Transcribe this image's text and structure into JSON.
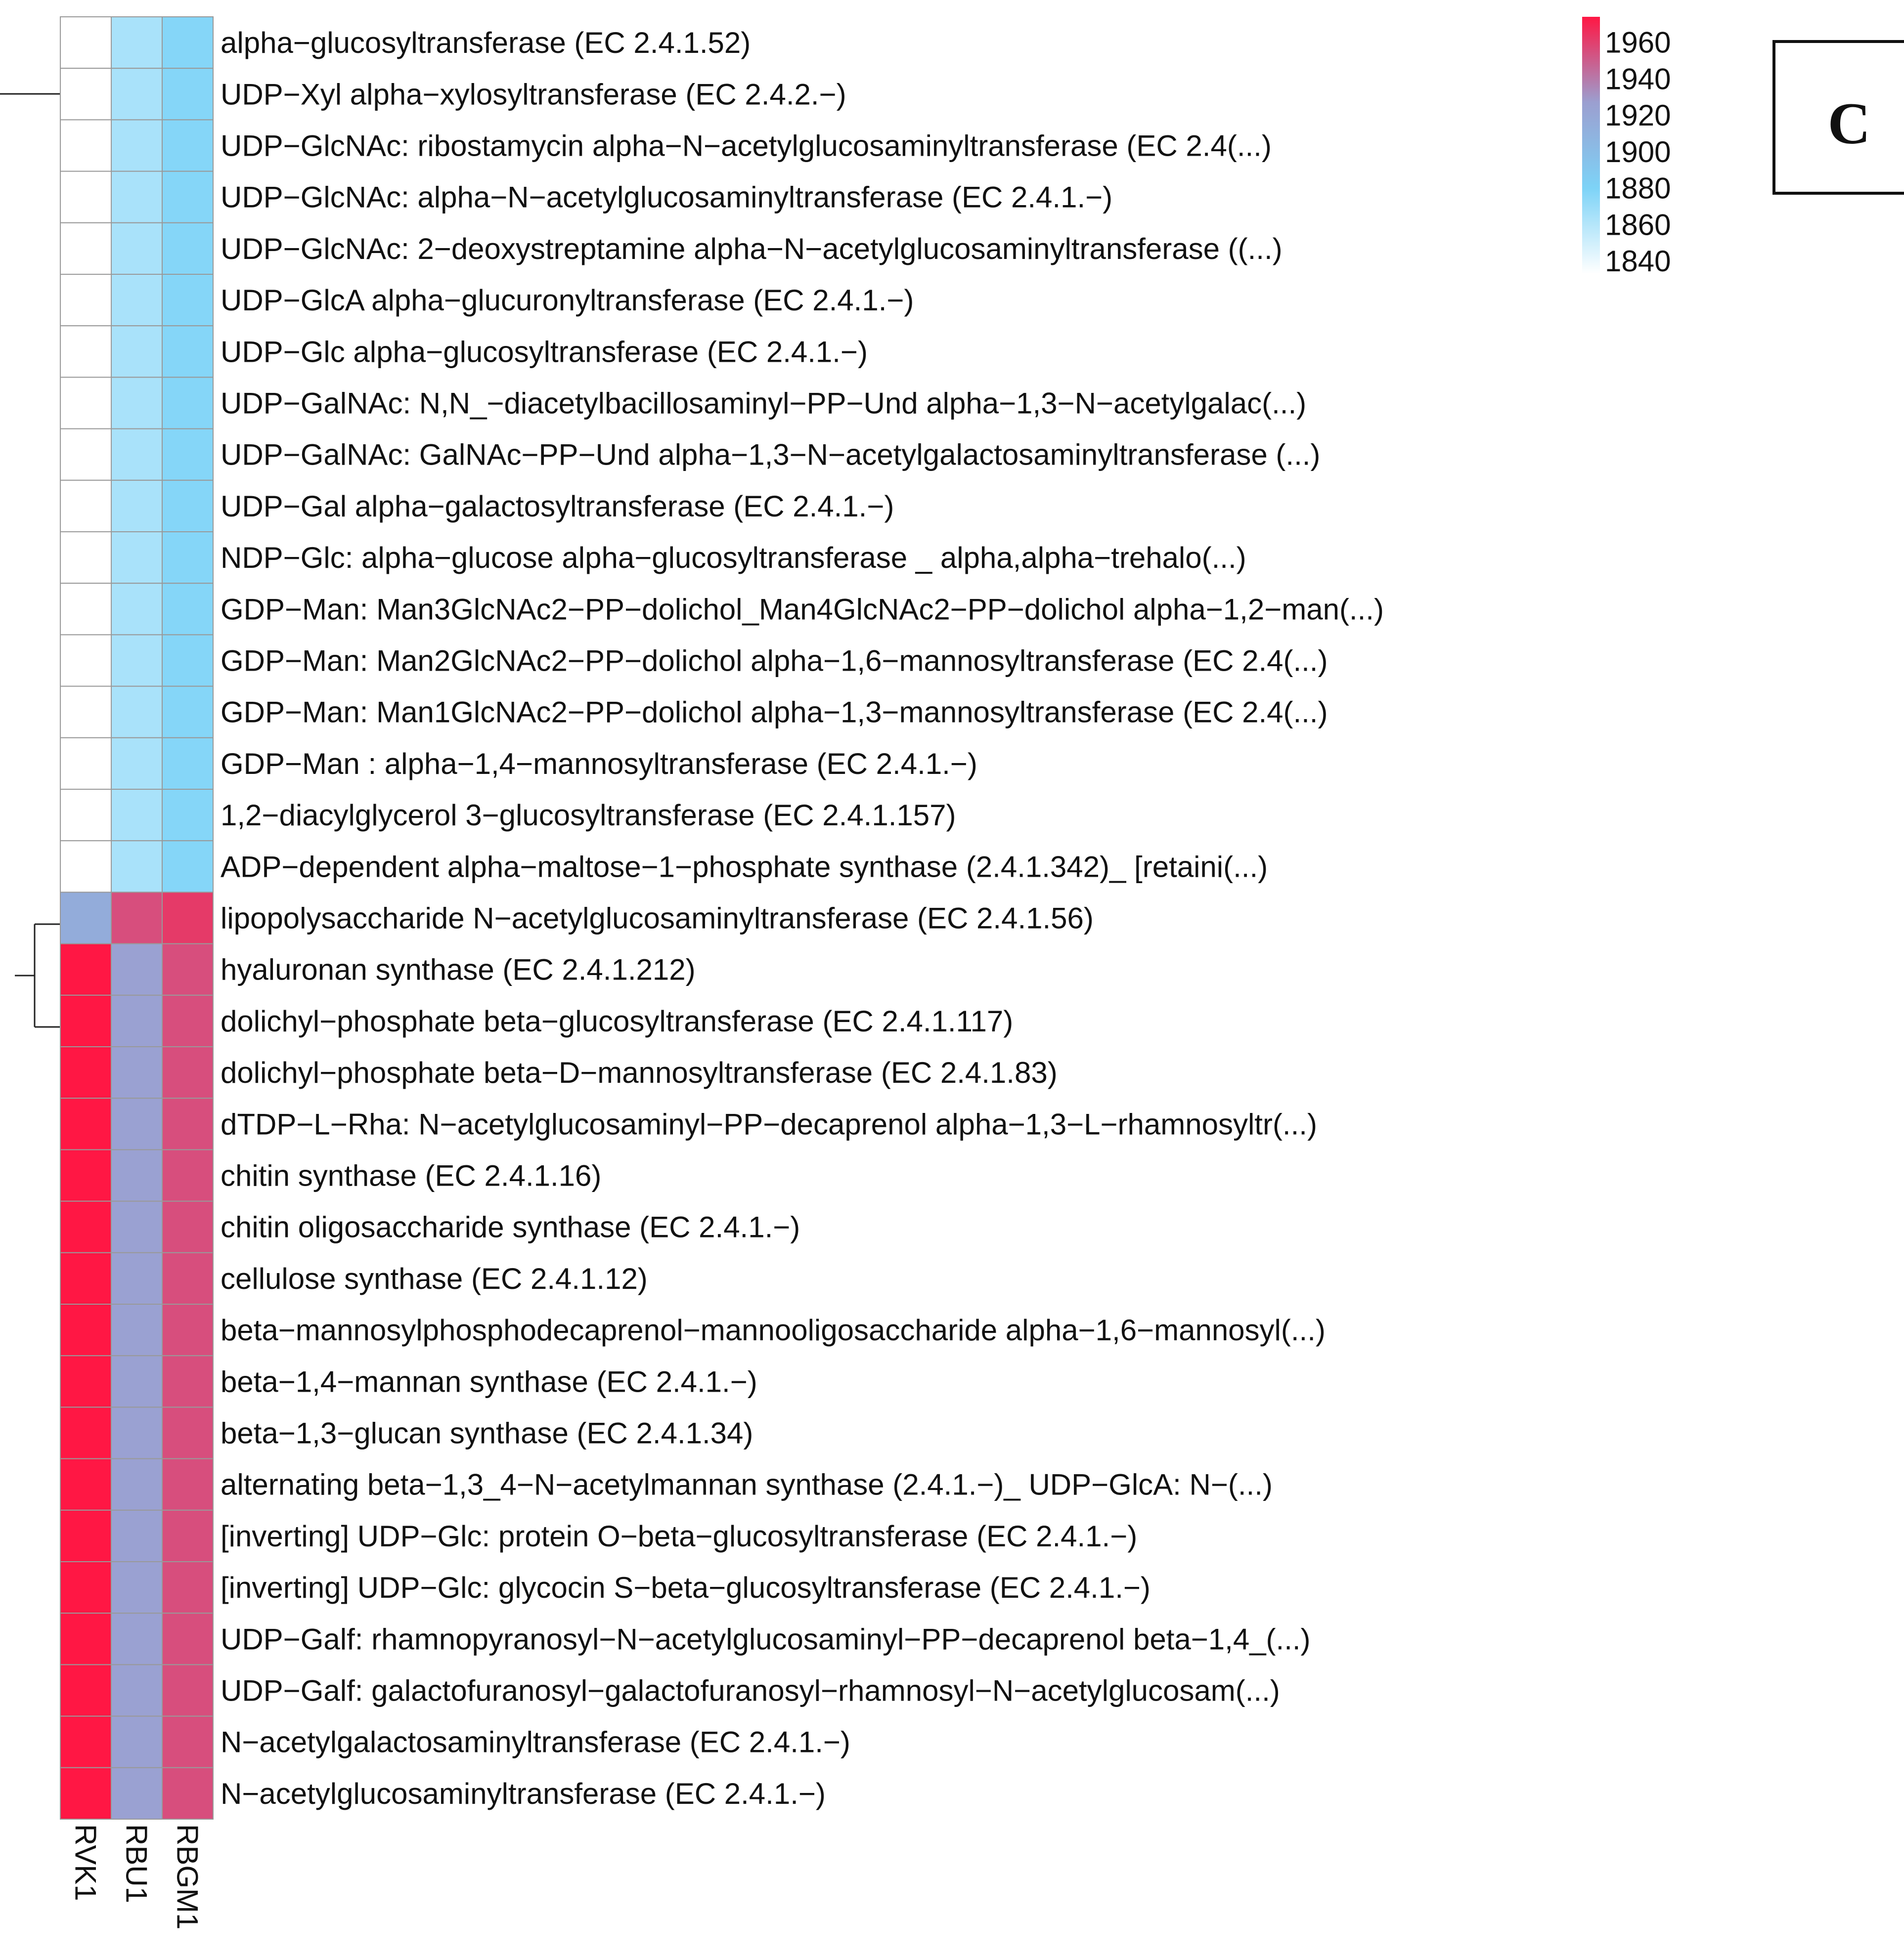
{
  "chart_data": {
    "type": "heatmap",
    "panel_label": "C",
    "columns": [
      "RVK1",
      "RBU1",
      "RBGM1"
    ],
    "rows": [
      "alpha−glucosyltransferase (EC 2.4.1.52)",
      "UDP−Xyl alpha−xylosyltransferase (EC 2.4.2.−)",
      "UDP−GlcNAc: ribostamycin alpha−N−acetylglucosaminyltransferase (EC 2.4(...)",
      "UDP−GlcNAc: alpha−N−acetylglucosaminyltransferase (EC 2.4.1.−)",
      "UDP−GlcNAc: 2−deoxystreptamine alpha−N−acetylglucosaminyltransferase ((...)",
      "UDP−GlcA alpha−glucuronyltransferase (EC 2.4.1.−)",
      "UDP−Glc alpha−glucosyltransferase (EC 2.4.1.−)",
      "UDP−GalNAc: N,N_−diacetylbacillosaminyl−PP−Und alpha−1,3−N−acetylgalac(...)",
      "UDP−GalNAc: GalNAc−PP−Und alpha−1,3−N−acetylgalactosaminyltransferase (...)",
      "UDP−Gal alpha−galactosyltransferase (EC 2.4.1.−)",
      "NDP−Glc: alpha−glucose alpha−glucosyltransferase _ alpha,alpha−trehalo(...)",
      "GDP−Man: Man3GlcNAc2−PP−dolichol_Man4GlcNAc2−PP−dolichol alpha−1,2−man(...)",
      "GDP−Man: Man2GlcNAc2−PP−dolichol alpha−1,6−mannosyltransferase (EC 2.4(...)",
      "GDP−Man: Man1GlcNAc2−PP−dolichol alpha−1,3−mannosyltransferase (EC 2.4(...)",
      "GDP−Man : alpha−1,4−mannosyltransferase (EC 2.4.1.−)",
      "1,2−diacylglycerol 3−glucosyltransferase (EC 2.4.1.157)",
      "ADP−dependent alpha−maltose−1−phosphate synthase (2.4.1.342)_ [retaini(...)",
      "lipopolysaccharide N−acetylglucosaminyltransferase (EC 2.4.1.56)",
      "hyaluronan synthase (EC 2.4.1.212)",
      "dolichyl−phosphate beta−glucosyltransferase (EC 2.4.1.117)",
      "dolichyl−phosphate beta−D−mannosyltransferase (EC 2.4.1.83)",
      "dTDP−L−Rha: N−acetylglucosaminyl−PP−decaprenol alpha−1,3−L−rhamnosyltr(...)",
      "chitin synthase (EC 2.4.1.16)",
      "chitin oligosaccharide synthase (EC 2.4.1.−)",
      "cellulose synthase (EC 2.4.1.12)",
      "beta−mannosylphosphodecaprenol−mannooligosaccharide alpha−1,6−mannosyl(...)",
      "beta−1,4−mannan synthase (EC 2.4.1.−)",
      "beta−1,3−glucan synthase (EC 2.4.1.34)",
      "alternating beta−1,3_4−N−acetylmannan synthase (2.4.1.−)_ UDP−GlcA: N−(...)",
      "[inverting] UDP−Glc: protein O−beta−glucosyltransferase (EC 2.4.1.−)",
      "[inverting] UDP−Glc: glycocin S−beta−glucosyltransferase (EC 2.4.1.−)",
      "UDP−Galf: rhamnopyranosyl−N−acetylglucosaminyl−PP−decaprenol beta−1,4_(...)",
      "UDP−Galf: galactofuranosyl−galactofuranosyl−rhamnosyl−N−acetylglucosam(...)",
      "N−acetylgalactosaminyltransferase (EC 2.4.1.−)",
      "N−acetylglucosaminyltransferase (EC 2.4.1.−)"
    ],
    "values": [
      [
        1833,
        1864,
        1877
      ],
      [
        1833,
        1864,
        1877
      ],
      [
        1833,
        1864,
        1877
      ],
      [
        1833,
        1864,
        1877
      ],
      [
        1833,
        1864,
        1877
      ],
      [
        1833,
        1864,
        1877
      ],
      [
        1833,
        1864,
        1877
      ],
      [
        1833,
        1864,
        1877
      ],
      [
        1833,
        1864,
        1877
      ],
      [
        1833,
        1864,
        1877
      ],
      [
        1833,
        1864,
        1877
      ],
      [
        1833,
        1864,
        1877
      ],
      [
        1833,
        1864,
        1877
      ],
      [
        1833,
        1864,
        1877
      ],
      [
        1833,
        1864,
        1877
      ],
      [
        1833,
        1864,
        1877
      ],
      [
        1833,
        1864,
        1877
      ],
      [
        1915,
        1955,
        1962
      ],
      [
        1974,
        1925,
        1955
      ],
      [
        1974,
        1925,
        1955
      ],
      [
        1974,
        1925,
        1955
      ],
      [
        1974,
        1925,
        1955
      ],
      [
        1974,
        1925,
        1955
      ],
      [
        1974,
        1925,
        1955
      ],
      [
        1974,
        1925,
        1955
      ],
      [
        1974,
        1925,
        1955
      ],
      [
        1974,
        1925,
        1955
      ],
      [
        1974,
        1925,
        1955
      ],
      [
        1974,
        1925,
        1955
      ],
      [
        1974,
        1925,
        1955
      ],
      [
        1974,
        1925,
        1955
      ],
      [
        1974,
        1925,
        1955
      ],
      [
        1974,
        1925,
        1955
      ],
      [
        1974,
        1925,
        1955
      ],
      [
        1974,
        1925,
        1955
      ]
    ],
    "colorbar": {
      "ticks": [
        1960,
        1940,
        1920,
        1900,
        1880,
        1860,
        1840
      ],
      "range": [
        1833,
        1974
      ],
      "colors": [
        "#ffffff",
        "#7dd3f7",
        "#9b9fd0",
        "#ff1744"
      ]
    },
    "row_dendrogram": true,
    "grid_color": "#999999"
  }
}
